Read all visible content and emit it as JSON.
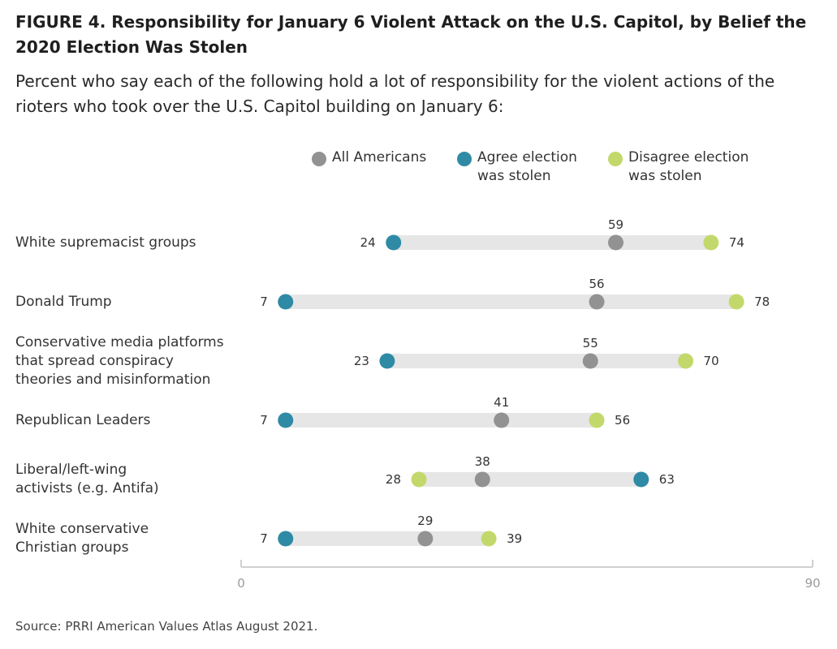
{
  "header": {
    "title": "FIGURE 4.  Responsibility for January 6 Violent Attack on the U.S. Capitol, by Belief the 2020 Election Was Stolen",
    "subtitle": "Percent who say each of the following hold a lot of responsibility for the violent actions of the rioters who took over the U.S. Capitol building on January 6:"
  },
  "source": "Source: PRRI American Values Atlas August 2021.",
  "colors": {
    "all": "#929292",
    "agree": "#2f8aa5",
    "disagree": "#c3d86b",
    "track": "#e6e6e6",
    "axis": "#d0d0d0"
  },
  "chart_data": {
    "type": "dot",
    "title": "FIGURE 4.  Responsibility for January 6 Violent Attack on the U.S. Capitol, by Belief the 2020 Election Was Stolen",
    "legend_position": "top",
    "xlim": [
      0,
      90
    ],
    "x_ticks": [
      "0",
      "90"
    ],
    "grid": false,
    "categories": [
      "White supremacist groups",
      "Donald Trump",
      "Conservative media platforms that spread conspiracy theories and misinformation",
      "Republican Leaders",
      "Liberal/left-wing activists (e.g. Antifa)",
      "White conservative Christian groups"
    ],
    "series": [
      {
        "name": "All Americans",
        "values": [
          59,
          56,
          55,
          41,
          38,
          29
        ]
      },
      {
        "name": "Agree election was stolen",
        "values": [
          24,
          7,
          23,
          7,
          63,
          7
        ]
      },
      {
        "name": "Disagree election was stolen",
        "values": [
          74,
          78,
          70,
          56,
          28,
          39
        ]
      }
    ]
  },
  "legend": {
    "all": "All Americans",
    "agree_line1": "Agree election",
    "agree_line2": "was stolen",
    "disagree_line1": "Disagree election",
    "disagree_line2": "was stolen"
  },
  "rows": [
    {
      "label_lines": [
        "White supremacist groups"
      ]
    },
    {
      "label_lines": [
        "Donald Trump"
      ]
    },
    {
      "label_lines": [
        "Conservative media platforms",
        "that spread conspiracy",
        "theories and misinformation"
      ]
    },
    {
      "label_lines": [
        "Republican Leaders"
      ]
    },
    {
      "label_lines": [
        "Liberal/left-wing",
        "activists (e.g. Antifa)"
      ]
    },
    {
      "label_lines": [
        "White conservative",
        "Christian groups"
      ]
    }
  ]
}
